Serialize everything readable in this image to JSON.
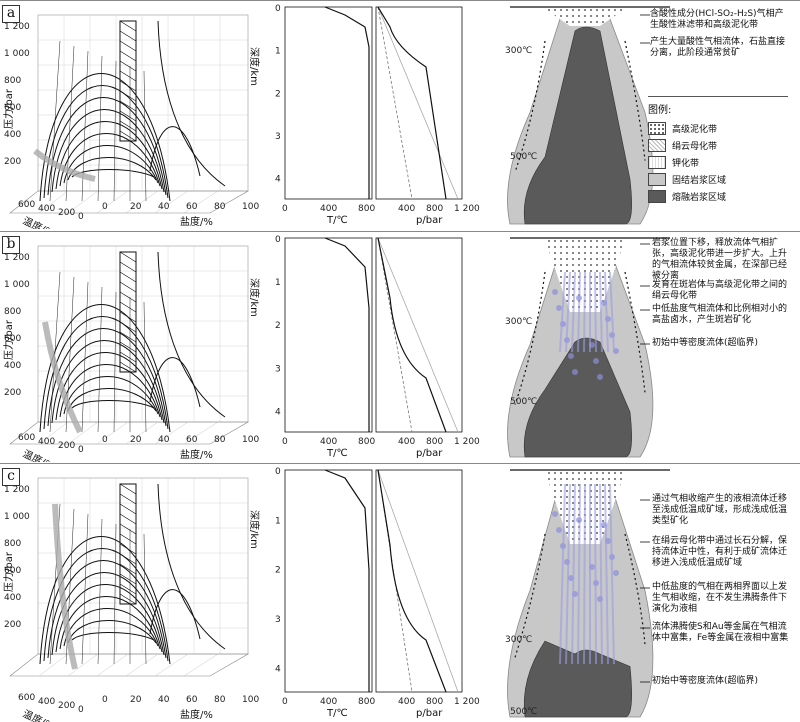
{
  "panels": [
    {
      "label": "a",
      "notes": [
        "含酸性成分(HCl-SO₂-H₂S)气相产生酸性淋滤带和高级泥化带",
        "产生大量酸性气相流体，石盐直接分离，此阶段通常贫矿"
      ],
      "isotherms": [
        "300℃",
        "500℃"
      ]
    },
    {
      "label": "b",
      "notes": [
        "岩浆位置下移，释放流体气相扩张，高级泥化带进一步扩大。上升的气相流体较贫金属，在深部已经被分离",
        "发育在斑岩体与高级泥化带之间的绢云母化带",
        "中低盐度气相流体和比例相对小的高盐卤水，产生斑岩矿化",
        "初始中等密度流体(超临界)"
      ],
      "isotherms": [
        "300℃",
        "500℃"
      ]
    },
    {
      "label": "c",
      "notes": [
        "通过气相收缩产生的液相流体迁移至浅成低温成矿域，形成浅成低温类型矿化",
        "在绢云母化带中通过长石分解，保持流体近中性，有利于成矿流体迁移进入浅成低温成矿域",
        "中低盐度的气相在两相界面以上发生气相收缩，在不发生沸腾条件下演化为液相",
        "流体沸腾使S和Au等金属在气相流体中富集，Fe等金属在液相中富集",
        "初始中等密度流体(超临界)"
      ],
      "isotherms": [
        "300℃",
        "500℃"
      ]
    }
  ],
  "legend": {
    "title": "图例:",
    "items": [
      "高级泥化带",
      "绢云母化带",
      "钾化带",
      "固结岩浆区域",
      "熔融岩浆区域"
    ]
  },
  "axes3d": {
    "pressure_label": "压力/bar",
    "pressure_ticks": [
      "1 200",
      "1 000",
      "800",
      "600",
      "400",
      "200"
    ],
    "temp_label": "温度/℃",
    "temp_ticks": [
      "600",
      "400",
      "200",
      "0"
    ],
    "salinity_label": "盐度/%",
    "salinity_ticks": [
      "0",
      "20",
      "40",
      "60",
      "80",
      "100"
    ]
  },
  "depth_plot": {
    "ylabel": "深度/km",
    "depth_ticks": [
      "0",
      "1",
      "2",
      "3",
      "4"
    ],
    "t_label": "T/℃",
    "t_ticks": [
      "0",
      "400",
      "800"
    ],
    "p_label": "p/bar",
    "p_ticks": [
      "400",
      "800",
      "1 200"
    ]
  }
}
